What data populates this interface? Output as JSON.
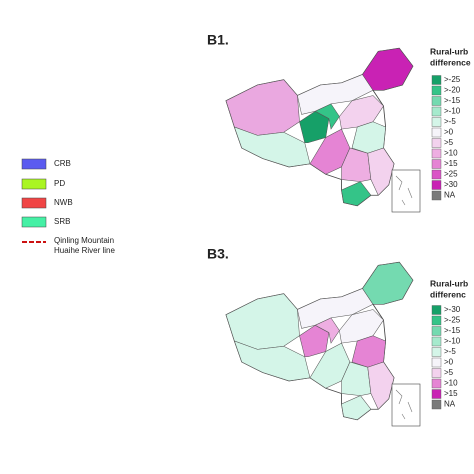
{
  "region_legend": [
    {
      "label": "CRB",
      "color": "#5b5bf0"
    },
    {
      "label": "PD",
      "color": "#aaf522"
    },
    {
      "label": "NWB",
      "color": "#f04545"
    },
    {
      "label": "SRB",
      "color": "#45f0a5"
    }
  ],
  "line_legend": {
    "label": [
      "Qinling Mountain",
      "Huaihe River line"
    ],
    "color": "#cc1111"
  },
  "panels": [
    {
      "label": "B1.",
      "legend_title": [
        "Rural-urb",
        "difference"
      ],
      "scale": [
        {
          "label": ">-25",
          "color": "#16a068"
        },
        {
          "label": ">-20",
          "color": "#34c488"
        },
        {
          "label": ">-15",
          "color": "#74dab0"
        },
        {
          "label": ">-10",
          "color": "#a6eacd"
        },
        {
          "label": ">-5",
          "color": "#d4f5e8"
        },
        {
          "label": ">0",
          "color": "#f6f4fa"
        },
        {
          "label": ">5",
          "color": "#f3d2ee"
        },
        {
          "label": ">10",
          "color": "#eeaee2"
        },
        {
          "label": ">15",
          "color": "#e584d4"
        },
        {
          "label": ">25",
          "color": "#da55c6"
        },
        {
          "label": ">30",
          "color": "#c922b4"
        },
        {
          "label": "NA",
          "color": "#7a7a7a"
        }
      ],
      "fills": [
        "#eaa8e0",
        "#d4f5e8",
        "#f6f4fa",
        "#c922b4",
        "#16a068",
        "#34c488",
        "#f3d2ee",
        "#e584d4",
        "#34c488",
        "#d4f5e8",
        "#eeaee2",
        "#f3d2ee"
      ]
    },
    {
      "label": "B3.",
      "legend_title": [
        "Rural-urb",
        "differenc"
      ],
      "scale": [
        {
          "label": ">-30",
          "color": "#16a068"
        },
        {
          "label": ">-25",
          "color": "#34c488"
        },
        {
          "label": ">-15",
          "color": "#74dab0"
        },
        {
          "label": ">-10",
          "color": "#a6eacd"
        },
        {
          "label": ">-5",
          "color": "#d4f5e8"
        },
        {
          "label": ">0",
          "color": "#f6f4fa"
        },
        {
          "label": ">5",
          "color": "#f3d2ee"
        },
        {
          "label": ">10",
          "color": "#e584d4"
        },
        {
          "label": ">15",
          "color": "#c922b4"
        },
        {
          "label": "NA",
          "color": "#7a7a7a"
        }
      ],
      "fills": [
        "#d4f5e8",
        "#d4f5e8",
        "#f6f4fa",
        "#74dab0",
        "#e584d4",
        "#eeaee2",
        "#f6f4fa",
        "#d4f5e8",
        "#d4f5e8",
        "#e584d4",
        "#d4f5e8",
        "#f3d2ee"
      ]
    }
  ]
}
